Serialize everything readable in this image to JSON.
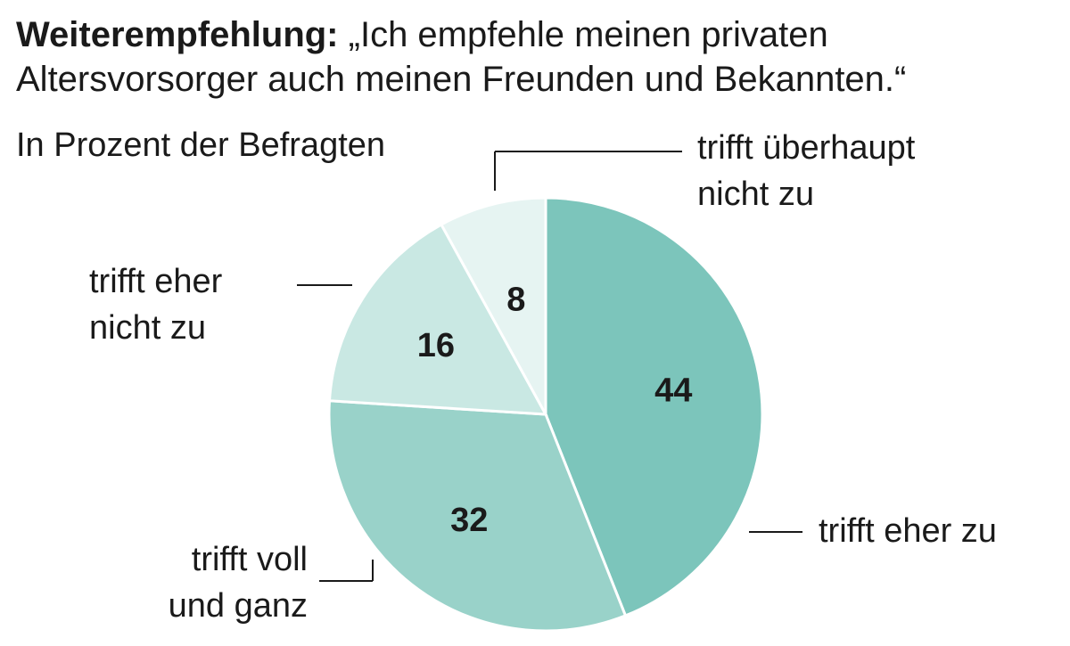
{
  "title": {
    "bold": "Weiterempfehlung:",
    "text": "„Ich empfehle meinen privaten Altersvorsorger auch meinen Freunden und Bekannten.“"
  },
  "subtitle": "In Prozent der Befragten",
  "chart_data": {
    "type": "pie",
    "start": "top, clockwise",
    "slices": [
      {
        "label": [
          "trifft eher zu"
        ],
        "value": 44,
        "color": "#7cc5bb"
      },
      {
        "label": [
          "trifft voll",
          "und ganz"
        ],
        "value": 32,
        "color": "#99d2c9"
      },
      {
        "label": [
          "trifft eher",
          "nicht zu"
        ],
        "value": 16,
        "color": "#c9e8e3"
      },
      {
        "label": [
          "trifft überhaupt",
          "nicht zu"
        ],
        "value": 8,
        "color": "#e6f4f2"
      }
    ]
  }
}
